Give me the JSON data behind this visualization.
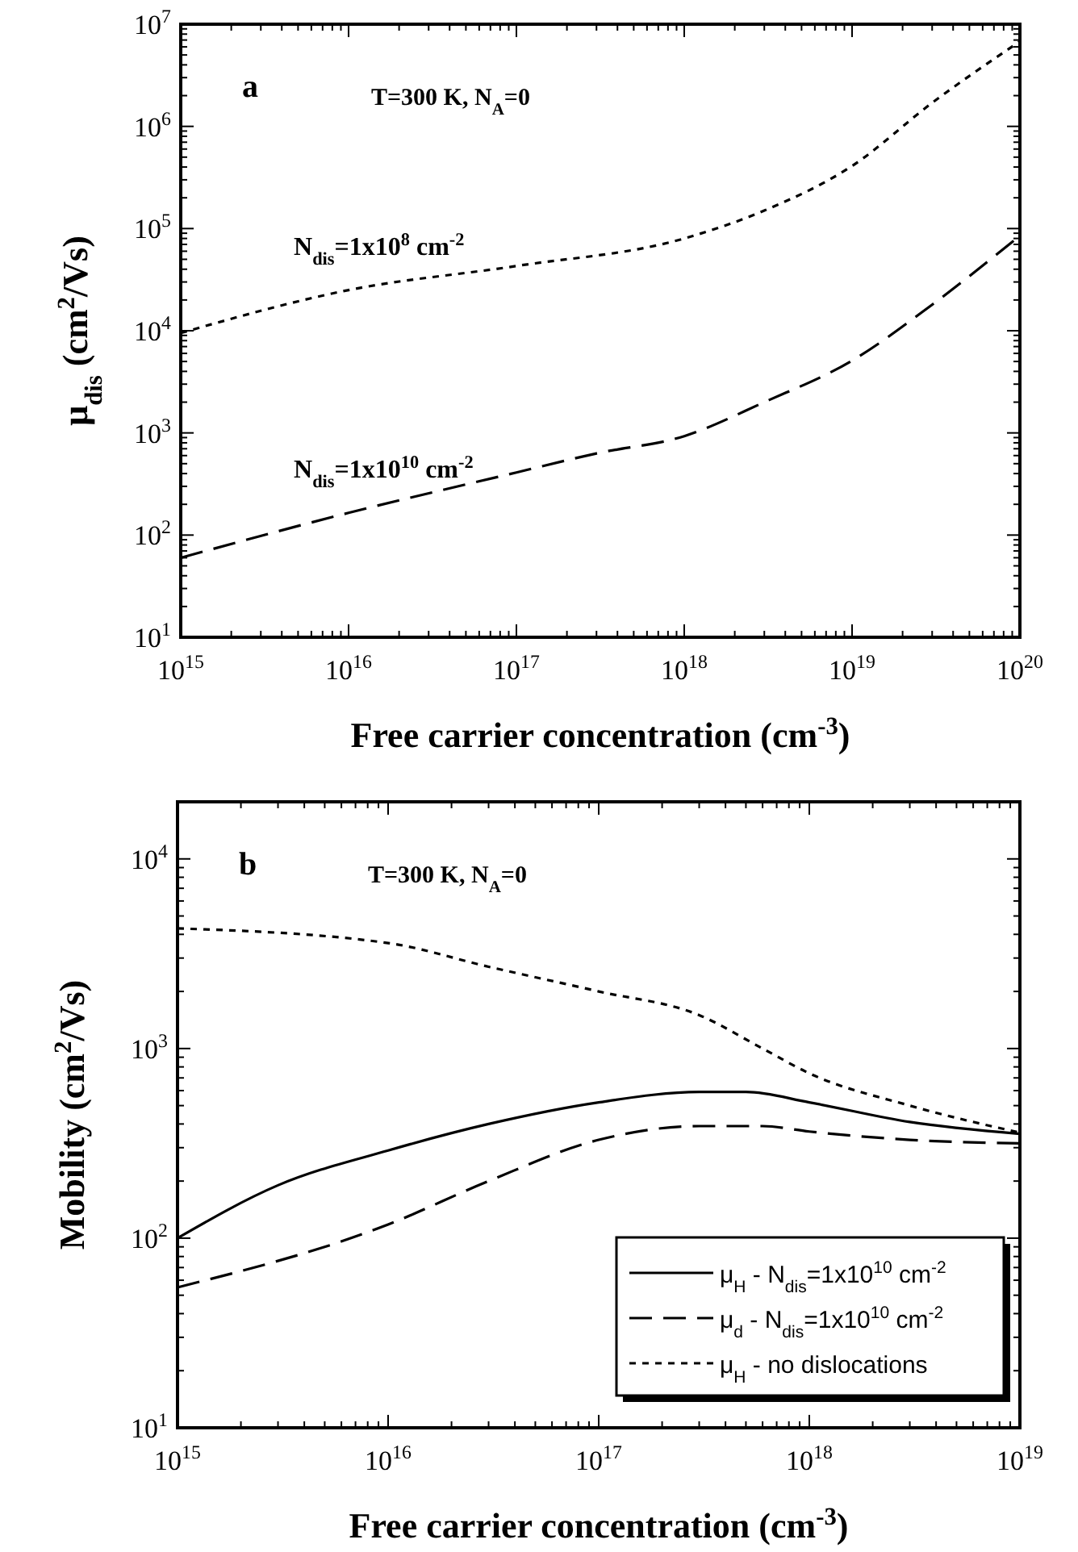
{
  "chart_data": [
    {
      "type": "line",
      "xlabel": "Free carrier concentration (cm$^{-3}$)",
      "ylabel": "μ$_{dis}$ (cm$^{2}$/Vs)",
      "log": "xy",
      "xlim": [
        1000000000000000.0,
        1e+20
      ],
      "ylim": [
        10,
        10000000.0
      ],
      "xticks": [
        {
          "value": 1000000000000000.0,
          "label": "10$^{15}$"
        },
        {
          "value": 1e+16,
          "label": "10$^{16}$"
        },
        {
          "value": 1e+17,
          "label": "10$^{17}$"
        },
        {
          "value": 1e+18,
          "label": "10$^{18}$"
        },
        {
          "value": 1e+19,
          "label": "10$^{19}$"
        },
        {
          "value": 1e+20,
          "label": "10$^{20}$"
        }
      ],
      "yticks": [
        {
          "value": 10,
          "label": "10$^{1}$"
        },
        {
          "value": 100,
          "label": "10$^{2}$"
        },
        {
          "value": 1000,
          "label": "10$^{3}$"
        },
        {
          "value": 10000,
          "label": "10$^{4}$"
        },
        {
          "value": 100000,
          "label": "10$^{5}$"
        },
        {
          "value": 1000000,
          "label": "10$^{6}$"
        },
        {
          "value": 10000000,
          "label": "10$^{7}$"
        }
      ],
      "annotations": [
        "a",
        "T=300 K, N$_{A}$=0"
      ],
      "legend": false,
      "series": [
        {
          "name": "N$_{dis}$=1x10$^{8}$ cm$^{-2}$",
          "color": "#000000",
          "line_style": "dotted",
          "x": [
            1000000000000000.0,
            1e+16,
            1e+17,
            1e+18,
            3e+18,
            1e+19,
            3e+19,
            1e+20
          ],
          "values": [
            9500,
            25000,
            43000,
            80000,
            150000,
            410000,
            1700000,
            6800000
          ]
        },
        {
          "name": "N$_{dis}$=1x10$^{10}$ cm$^{-2}$",
          "color": "#000000",
          "line_style": "dashed",
          "x": [
            1000000000000000.0,
            1e+16,
            1e+17,
            3e+17,
            1e+18,
            3e+18,
            1e+19,
            3e+19,
            1e+20
          ],
          "values": [
            60,
            165,
            410,
            630,
            930,
            2000,
            5100,
            18000,
            85000
          ]
        }
      ]
    },
    {
      "type": "line",
      "xlabel": "Free carrier concentration (cm$^{-3}$)",
      "ylabel": "Mobility (cm$^{2}$/Vs)",
      "log": "xy",
      "xlim": [
        1000000000000000.0,
        1e+19
      ],
      "ylim": [
        10,
        20000
      ],
      "xticks": [
        {
          "value": 1000000000000000.0,
          "label": "10$^{15}$"
        },
        {
          "value": 1e+16,
          "label": "10$^{16}$"
        },
        {
          "value": 1e+17,
          "label": "10$^{17}$"
        },
        {
          "value": 1e+18,
          "label": "10$^{18}$"
        },
        {
          "value": 1e+19,
          "label": "10$^{19}$"
        }
      ],
      "yticks": [
        {
          "value": 10,
          "label": "10$^{1}$"
        },
        {
          "value": 100,
          "label": "10$^{2}$"
        },
        {
          "value": 1000,
          "label": "10$^{3}$"
        },
        {
          "value": 10000,
          "label": "10$^{4}$"
        }
      ],
      "annotations": [
        "b",
        "T=300 K, N$_{A}$=0"
      ],
      "legend": "bottom right",
      "series": [
        {
          "name": "μ$_{H}$ - N$_{dis}$=1x10$^{10}$ cm$^{-2}$",
          "color": "#000000",
          "line_style": "solid",
          "x": [
            1000000000000000.0,
            3000000000000000.0,
            1e+16,
            3e+16,
            1e+17,
            3e+17,
            5e+17,
            1e+18,
            3e+18,
            1e+19
          ],
          "values": [
            100,
            190,
            290,
            400,
            520,
            590,
            590,
            520,
            410,
            355
          ]
        },
        {
          "name": "μ$_{d}$ - N$_{dis}$=1x10$^{10}$ cm$^{-2}$",
          "color": "#000000",
          "line_style": "dashed",
          "x": [
            1000000000000000.0,
            1e+16,
            3e+16,
            1e+17,
            3e+17,
            6e+17,
            1e+18,
            3e+18,
            1e+19
          ],
          "values": [
            55,
            118,
            200,
            330,
            390,
            390,
            365,
            330,
            316
          ]
        },
        {
          "name": "μ$_{H}$ - no dislocations",
          "color": "#000000",
          "line_style": "dotted",
          "x": [
            1000000000000000.0,
            1e+16,
            3e+16,
            1e+17,
            3e+17,
            6e+17,
            1e+18,
            3e+18,
            1e+19
          ],
          "values": [
            4300,
            3600,
            2700,
            2000,
            1500,
            1000,
            740,
            500,
            360
          ]
        }
      ]
    }
  ]
}
